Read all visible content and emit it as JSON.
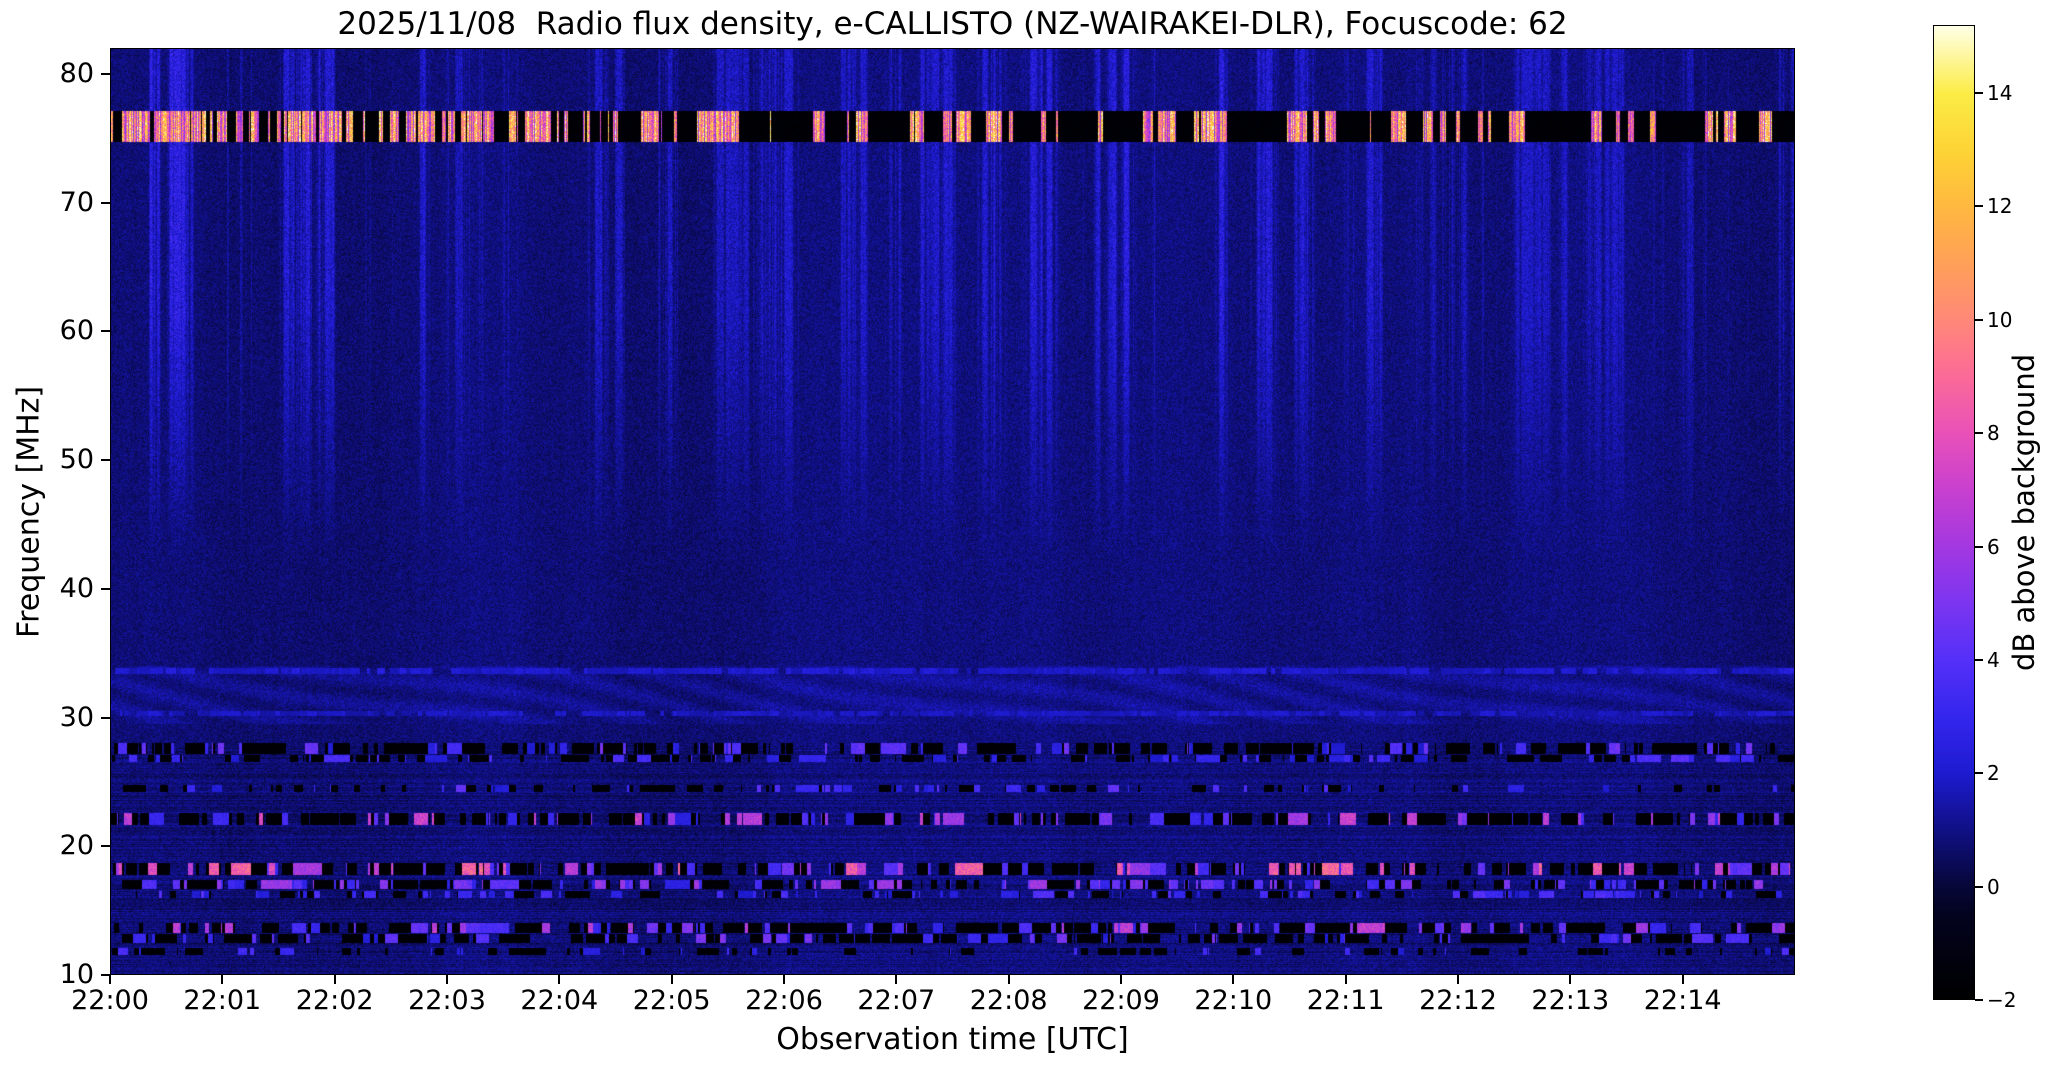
{
  "chart_data": {
    "type": "heatmap",
    "title": "2025/11/08  Radio flux density, e-CALLISTO (NZ-WAIRAKEI-DLR), Focuscode: 62",
    "xlabel": "Observation time [UTC]",
    "ylabel": "Frequency [MHz]",
    "x_ticks": [
      "22:00",
      "22:01",
      "22:02",
      "22:03",
      "22:04",
      "22:05",
      "22:06",
      "22:07",
      "22:08",
      "22:09",
      "22:10",
      "22:11",
      "22:12",
      "22:13",
      "22:14"
    ],
    "x_range_minutes": 15,
    "y_ticks": [
      80,
      70,
      60,
      50,
      40,
      30,
      20,
      10
    ],
    "ylim": [
      10,
      82
    ],
    "colorbar": {
      "label": "dB above background",
      "ticks": [
        14,
        12,
        10,
        8,
        6,
        4,
        2,
        0,
        -2
      ],
      "range": [
        -2,
        15.2
      ],
      "colormap_stops": [
        {
          "value": -2.0,
          "color": "#000000"
        },
        {
          "value": -0.5,
          "color": "#03031f"
        },
        {
          "value": 0.0,
          "color": "#07073a"
        },
        {
          "value": 1.0,
          "color": "#101086"
        },
        {
          "value": 2.0,
          "color": "#1d1bd0"
        },
        {
          "value": 3.0,
          "color": "#3526ee"
        },
        {
          "value": 4.0,
          "color": "#5530f8"
        },
        {
          "value": 5.0,
          "color": "#7c35f0"
        },
        {
          "value": 6.0,
          "color": "#a338e0"
        },
        {
          "value": 7.0,
          "color": "#c840cf"
        },
        {
          "value": 8.0,
          "color": "#e951b8"
        },
        {
          "value": 9.0,
          "color": "#fb6a98"
        },
        {
          "value": 10.0,
          "color": "#ff8878"
        },
        {
          "value": 11.0,
          "color": "#ffa058"
        },
        {
          "value": 12.0,
          "color": "#ffb840"
        },
        {
          "value": 13.0,
          "color": "#fdd435"
        },
        {
          "value": 14.0,
          "color": "#fcec45"
        },
        {
          "value": 15.2,
          "color": "#ffffe6"
        }
      ]
    },
    "notable_features": [
      "Strong intermittent broadcast RFI band near 75-77 MHz: mostly saturated black with bright yellow/white bursts up to ~15 dB, densest between 22:00 and 22:05",
      "Faint vertical blue emission/scintillation streaks mainly between 55 and 80 MHz, strongest near 22:00-22:02 and around 22:09-22:11",
      "Speckled narrowband RFI lines (black dropouts with blue/magenta bursts) near 27.5, 26.8, 24.5, 22, 18.2, 17, 16.2, 13.6, 12.8 and 11.8 MHz",
      "Wavy weak interference pattern between roughly 29.5 and 34 MHz",
      "Background quiet level around 0-1.5 dB (dark blue) over the whole 10-82 MHz band"
    ],
    "render": {
      "seed": 20251108,
      "base_level_db": [
        0.2,
        1.4
      ],
      "vertical_streaks": {
        "min_freq": 42,
        "full_freq": 62,
        "max_db": 4.2
      },
      "wavy_band": {
        "freq_range": [
          29.5,
          34
        ],
        "amplitude_db": 0.55
      },
      "rfi_band_76mhz": {
        "freq": 76.0,
        "width": 1.2,
        "black_db": -2,
        "burst_db": [
          6,
          15
        ]
      },
      "rfi_lines": [
        {
          "freq": 27.6,
          "width": 0.4,
          "black_frac": 0.45,
          "bright_frac": 0.2,
          "bright_db": [
            2,
            5
          ]
        },
        {
          "freq": 26.8,
          "width": 0.28,
          "black_frac": 0.3,
          "bright_frac": 0.15,
          "bright_db": [
            2,
            4
          ]
        },
        {
          "freq": 24.5,
          "width": 0.28,
          "black_frac": 0.2,
          "bright_frac": 0.15,
          "bright_db": [
            2,
            4.5
          ]
        },
        {
          "freq": 22.1,
          "width": 0.45,
          "black_frac": 0.5,
          "bright_frac": 0.25,
          "bright_db": [
            2.5,
            7.5
          ]
        },
        {
          "freq": 18.2,
          "width": 0.45,
          "black_frac": 0.45,
          "bright_frac": 0.3,
          "bright_db": [
            3,
            9
          ]
        },
        {
          "freq": 17.0,
          "width": 0.35,
          "black_frac": 0.35,
          "bright_frac": 0.3,
          "bright_db": [
            2.5,
            6
          ]
        },
        {
          "freq": 16.2,
          "width": 0.28,
          "black_frac": 0.15,
          "bright_frac": 0.25,
          "bright_db": [
            2,
            4
          ]
        },
        {
          "freq": 13.6,
          "width": 0.4,
          "black_frac": 0.5,
          "bright_frac": 0.25,
          "bright_db": [
            2.5,
            7
          ]
        },
        {
          "freq": 12.8,
          "width": 0.35,
          "black_frac": 0.45,
          "bright_frac": 0.2,
          "bright_db": [
            2,
            5
          ]
        },
        {
          "freq": 11.8,
          "width": 0.25,
          "black_frac": 0.2,
          "bright_frac": 0.1,
          "bright_db": [
            2,
            4
          ]
        },
        {
          "freq": 33.6,
          "width": 0.22,
          "black_frac": 0.0,
          "bright_frac": 0.85,
          "bright_db": [
            1.6,
            2.4
          ]
        },
        {
          "freq": 30.3,
          "width": 0.2,
          "black_frac": 0.0,
          "bright_frac": 0.8,
          "bright_db": [
            1.4,
            2.2
          ]
        }
      ]
    }
  }
}
